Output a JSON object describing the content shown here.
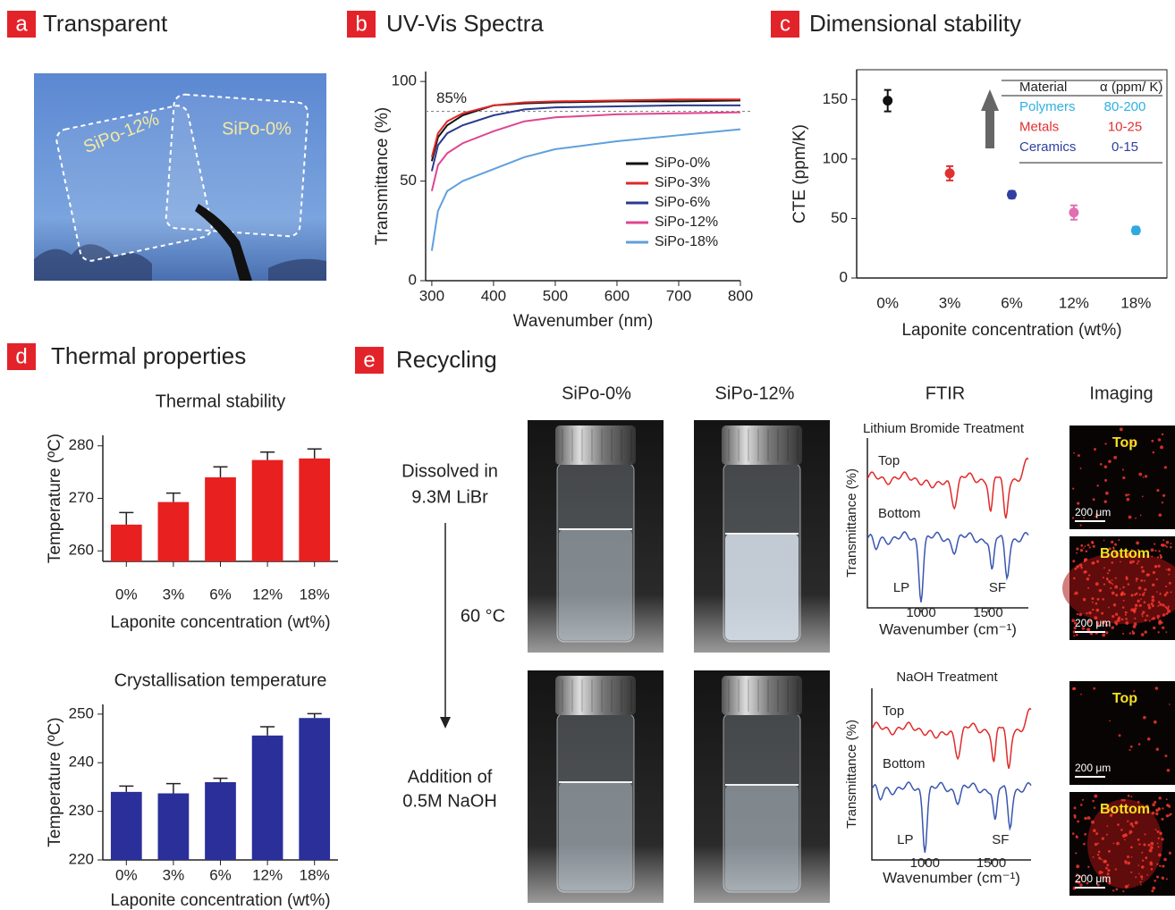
{
  "panels": {
    "a": {
      "letter": "a",
      "title": "Transparent",
      "labels": [
        "SiPo-12%",
        "SiPo-0%"
      ]
    },
    "b": {
      "letter": "b",
      "title": "UV-Vis Spectra"
    },
    "c": {
      "letter": "c",
      "title": "Dimensional stability"
    },
    "d": {
      "letter": "d",
      "title": "Thermal properties"
    },
    "e": {
      "letter": "e",
      "title": "Recycling",
      "columns": [
        "SiPo-0%",
        "SiPo-12%",
        "FTIR",
        "Imaging"
      ],
      "steps": [
        "Dissolved in",
        "9.3M LiBr",
        "60 °C",
        "Addition of",
        "0.5M NaOH"
      ],
      "ftir": [
        {
          "title": "Lithium Bromide Treatment",
          "ylabel": "Transmittance (%)",
          "xlabel": "Wavenumber (cm⁻¹)",
          "xticks": [
            1000,
            1500
          ],
          "traces": [
            "Top",
            "Bottom"
          ],
          "peaks": [
            "LP",
            "SF"
          ]
        },
        {
          "title": "NaOH Treatment",
          "ylabel": "Transmittance (%)",
          "xlabel": "Wavenumber (cm⁻¹)",
          "xticks": [
            1000,
            1500
          ],
          "traces": [
            "Top",
            "Bottom"
          ],
          "peaks": [
            "LP",
            "SF"
          ]
        }
      ],
      "imaging": [
        {
          "label": "Top",
          "scale": "200 μm"
        },
        {
          "label": "Bottom",
          "scale": "200 μm"
        },
        {
          "label": "Top",
          "scale": "200 μm"
        },
        {
          "label": "Bottom",
          "scale": "200 μm"
        }
      ]
    }
  },
  "chart_data": [
    {
      "type": "line",
      "xlabel": "Wavenumber (nm)",
      "ylabel": "Transmittance (%)",
      "x": [
        300,
        310,
        325,
        350,
        400,
        450,
        500,
        600,
        700,
        800
      ],
      "series": [
        {
          "name": "SiPo-0%",
          "color": "#111111",
          "values": [
            60,
            72,
            78,
            83,
            88,
            89,
            89.5,
            90,
            90,
            90.5
          ]
        },
        {
          "name": "SiPo-3%",
          "color": "#e0282b",
          "values": [
            62,
            74,
            80,
            84,
            88,
            89.5,
            90,
            90.5,
            91,
            91
          ]
        },
        {
          "name": "SiPo-6%",
          "color": "#2a3a8f",
          "values": [
            55,
            68,
            74,
            78,
            83,
            86,
            87,
            87.5,
            88,
            88
          ]
        },
        {
          "name": "SiPo-12%",
          "color": "#e0458f",
          "values": [
            45,
            58,
            64,
            69,
            75,
            80,
            82,
            83.5,
            84,
            84.5
          ]
        },
        {
          "name": "SiPo-18%",
          "color": "#5fa0dd",
          "values": [
            15,
            35,
            45,
            50,
            56,
            62,
            66,
            70,
            73,
            76
          ]
        }
      ],
      "annotation": {
        "text": "85%",
        "value": 85
      },
      "xlim": [
        290,
        800
      ],
      "xticks": [
        300,
        400,
        500,
        600,
        700,
        800
      ],
      "ylim": [
        0,
        105
      ],
      "yticks": [
        0,
        50,
        100
      ]
    },
    {
      "type": "scatter",
      "xlabel": "Laponite concentration (wt%)",
      "ylabel": "CTE (ppm/K)",
      "categories": [
        "0%",
        "3%",
        "6%",
        "12%",
        "18%"
      ],
      "values": [
        149,
        88,
        70,
        55,
        40
      ],
      "errors": [
        9,
        6,
        3,
        6,
        3
      ],
      "colors": [
        "#111111",
        "#e03030",
        "#3040a0",
        "#e070b0",
        "#30a8e0"
      ],
      "ylim": [
        0,
        175
      ],
      "yticks": [
        0,
        50,
        100,
        150
      ],
      "inset_table": {
        "header": [
          "Material",
          "α (ppm/ K)"
        ],
        "rows": [
          [
            "Polymers",
            "80-200"
          ],
          [
            "Metals",
            "10-25"
          ],
          [
            "Ceramics",
            "0-15"
          ]
        ],
        "colors": [
          "#2fb0e0",
          "#e03030",
          "#3040a0"
        ]
      }
    },
    {
      "type": "bar",
      "title": "Thermal stability",
      "xlabel": "Laponite concentration (wt%)",
      "ylabel": "Temperature (ºC)",
      "categories": [
        "0%",
        "3%",
        "6%",
        "12%",
        "18%"
      ],
      "values": [
        265,
        269.3,
        274,
        277.3,
        277.6
      ],
      "errors": [
        2.3,
        1.7,
        2.0,
        1.5,
        1.8
      ],
      "color": "#e82020",
      "ylim": [
        258,
        282
      ],
      "yticks": [
        260,
        270,
        280
      ]
    },
    {
      "type": "bar",
      "title": "Crystallisation temperature",
      "xlabel": "Laponite concentration (wt%)",
      "ylabel": "Temperature (ºC)",
      "categories": [
        "0%",
        "3%",
        "6%",
        "12%",
        "18%"
      ],
      "values": [
        234,
        233.7,
        236,
        245.6,
        249.2
      ],
      "errors": [
        1.2,
        2,
        0.8,
        1.8,
        0.9
      ],
      "color": "#2a2f9a",
      "ylim": [
        220,
        252
      ],
      "yticks": [
        220,
        230,
        240,
        250
      ]
    }
  ]
}
